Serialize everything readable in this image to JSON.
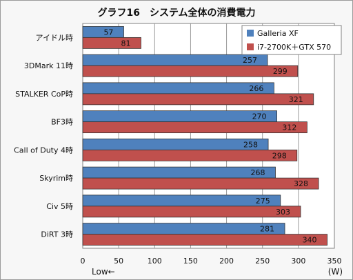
{
  "chart_data": {
    "type": "bar",
    "orientation": "horizontal",
    "title": "グラフ16　システム全体の消費電力",
    "categories": [
      "アイドル時",
      "3DMark 11時",
      "STALKER  CoP時",
      "BF3時",
      "Call of Duty 4時",
      "Skyrim時",
      "Civ 5時",
      "DiRT 3時"
    ],
    "series": [
      {
        "name": "Galleria XF",
        "values": [
          57,
          257,
          266,
          270,
          258,
          268,
          275,
          281
        ],
        "color": "#4f81bd"
      },
      {
        "name": "i7-2700K＋GTX 570",
        "values": [
          81,
          299,
          321,
          312,
          298,
          328,
          303,
          340
        ],
        "color": "#c0504d"
      }
    ],
    "xlim": [
      0,
      350
    ],
    "xticks": [
      0,
      50,
      100,
      150,
      200,
      250,
      300,
      350
    ],
    "grid": true,
    "legend_position": "top-right",
    "footer_left": "Low←",
    "footer_right": "(W)"
  }
}
